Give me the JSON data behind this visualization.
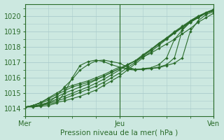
{
  "xlabel": "Pression niveau de la mer( hPa )",
  "bg_color": "#cce8e0",
  "grid_color": "#aacccc",
  "line_color": "#2a6b2a",
  "xlim": [
    0,
    48
  ],
  "ylim": [
    1013.5,
    1020.8
  ],
  "yticks": [
    1014,
    1015,
    1016,
    1017,
    1018,
    1019,
    1020
  ],
  "xtick_positions": [
    0,
    24,
    48
  ],
  "xtick_labels": [
    "Mer",
    "Jeu",
    "Ven"
  ],
  "vlines": [
    0,
    24,
    48
  ],
  "lines": [
    {
      "x": [
        0,
        2,
        4,
        6,
        8,
        10,
        12,
        14,
        16,
        18,
        20,
        22,
        24,
        26,
        28,
        30,
        32,
        34,
        36,
        38,
        40,
        42,
        44,
        46,
        48
      ],
      "y": [
        1014.1,
        1014.15,
        1014.2,
        1014.3,
        1014.4,
        1014.5,
        1014.65,
        1014.8,
        1015.0,
        1015.2,
        1015.5,
        1015.8,
        1016.1,
        1016.5,
        1016.9,
        1017.3,
        1017.7,
        1018.1,
        1018.5,
        1018.9,
        1019.3,
        1019.6,
        1019.9,
        1020.2,
        1020.4
      ]
    },
    {
      "x": [
        0,
        2,
        4,
        6,
        8,
        10,
        12,
        14,
        16,
        18,
        20,
        22,
        24,
        26,
        28,
        30,
        32,
        34,
        36,
        38,
        40,
        42,
        44,
        46,
        48
      ],
      "y": [
        1014.1,
        1014.15,
        1014.2,
        1014.35,
        1014.5,
        1014.65,
        1014.85,
        1015.05,
        1015.25,
        1015.45,
        1015.7,
        1016.0,
        1016.3,
        1016.65,
        1017.0,
        1017.4,
        1017.8,
        1018.2,
        1018.55,
        1018.95,
        1019.3,
        1019.65,
        1019.95,
        1020.2,
        1020.4
      ]
    },
    {
      "x": [
        0,
        2,
        4,
        6,
        8,
        10,
        12,
        14,
        16,
        18,
        20,
        22,
        24,
        26,
        28,
        30,
        32,
        34,
        36,
        38,
        40,
        42,
        44,
        46,
        48
      ],
      "y": [
        1014.1,
        1014.15,
        1014.25,
        1014.4,
        1014.6,
        1014.8,
        1015.0,
        1015.2,
        1015.4,
        1015.65,
        1015.9,
        1016.2,
        1016.5,
        1016.8,
        1017.1,
        1017.5,
        1017.85,
        1018.25,
        1018.6,
        1019.0,
        1019.35,
        1019.7,
        1020.0,
        1020.25,
        1020.45
      ]
    },
    {
      "x": [
        0,
        2,
        4,
        6,
        8,
        10,
        12,
        14,
        16,
        18,
        20,
        22,
        24,
        26,
        28,
        30,
        32,
        34,
        36,
        38,
        40,
        42,
        44,
        46,
        48
      ],
      "y": [
        1014.1,
        1014.2,
        1014.35,
        1014.55,
        1014.75,
        1015.0,
        1015.2,
        1015.4,
        1015.6,
        1015.85,
        1016.1,
        1016.35,
        1016.6,
        1016.85,
        1017.1,
        1017.45,
        1017.8,
        1018.2,
        1018.55,
        1018.9,
        1019.25,
        1019.6,
        1019.9,
        1020.2,
        1020.4
      ]
    },
    {
      "x": [
        0,
        2,
        4,
        6,
        8,
        10,
        12,
        14,
        16,
        18,
        20,
        22,
        24,
        26,
        28,
        30,
        32,
        34,
        36,
        38,
        40,
        42,
        44,
        46,
        48
      ],
      "y": [
        1014.1,
        1014.2,
        1014.4,
        1014.65,
        1014.9,
        1015.15,
        1015.4,
        1015.55,
        1015.7,
        1015.9,
        1016.1,
        1016.35,
        1016.6,
        1016.85,
        1017.1,
        1017.35,
        1017.6,
        1017.9,
        1018.2,
        1018.5,
        1018.85,
        1019.2,
        1019.6,
        1019.9,
        1020.2
      ]
    },
    {
      "x": [
        0,
        2,
        4,
        6,
        8,
        10,
        12,
        14,
        16,
        18,
        20,
        22,
        24,
        26,
        28,
        30,
        32,
        34,
        36,
        38,
        40,
        42,
        44,
        46,
        48
      ],
      "y": [
        1014.1,
        1014.2,
        1014.4,
        1014.7,
        1015.0,
        1015.3,
        1015.5,
        1015.65,
        1015.8,
        1016.0,
        1016.2,
        1016.45,
        1016.7,
        1016.6,
        1016.55,
        1016.55,
        1016.6,
        1016.65,
        1016.8,
        1016.95,
        1017.3,
        1019.0,
        1019.7,
        1020.1,
        1020.3
      ]
    },
    {
      "x": [
        0,
        2,
        4,
        6,
        8,
        10,
        12,
        14,
        16,
        18,
        20,
        22,
        24,
        26,
        28,
        30,
        32,
        34,
        36,
        38,
        40,
        42,
        44,
        46,
        48
      ],
      "y": [
        1014.1,
        1014.15,
        1014.25,
        1014.4,
        1014.8,
        1015.4,
        1015.9,
        1016.5,
        1016.85,
        1017.1,
        1017.15,
        1017.05,
        1016.95,
        1016.7,
        1016.55,
        1016.55,
        1016.6,
        1016.7,
        1016.85,
        1017.3,
        1019.1,
        1019.6,
        1019.95,
        1020.2,
        1020.4
      ]
    },
    {
      "x": [
        0,
        2,
        4,
        6,
        8,
        10,
        12,
        14,
        16,
        18,
        20,
        22,
        24,
        26,
        28,
        30,
        32,
        34,
        36,
        38,
        40,
        42,
        44,
        46,
        48
      ],
      "y": [
        1014.1,
        1014.1,
        1014.15,
        1014.2,
        1014.35,
        1015.0,
        1016.0,
        1016.8,
        1017.05,
        1017.15,
        1017.05,
        1016.85,
        1016.7,
        1016.55,
        1016.5,
        1016.6,
        1016.65,
        1016.85,
        1017.3,
        1018.5,
        1019.1,
        1019.7,
        1020.0,
        1020.2,
        1020.35
      ]
    }
  ]
}
